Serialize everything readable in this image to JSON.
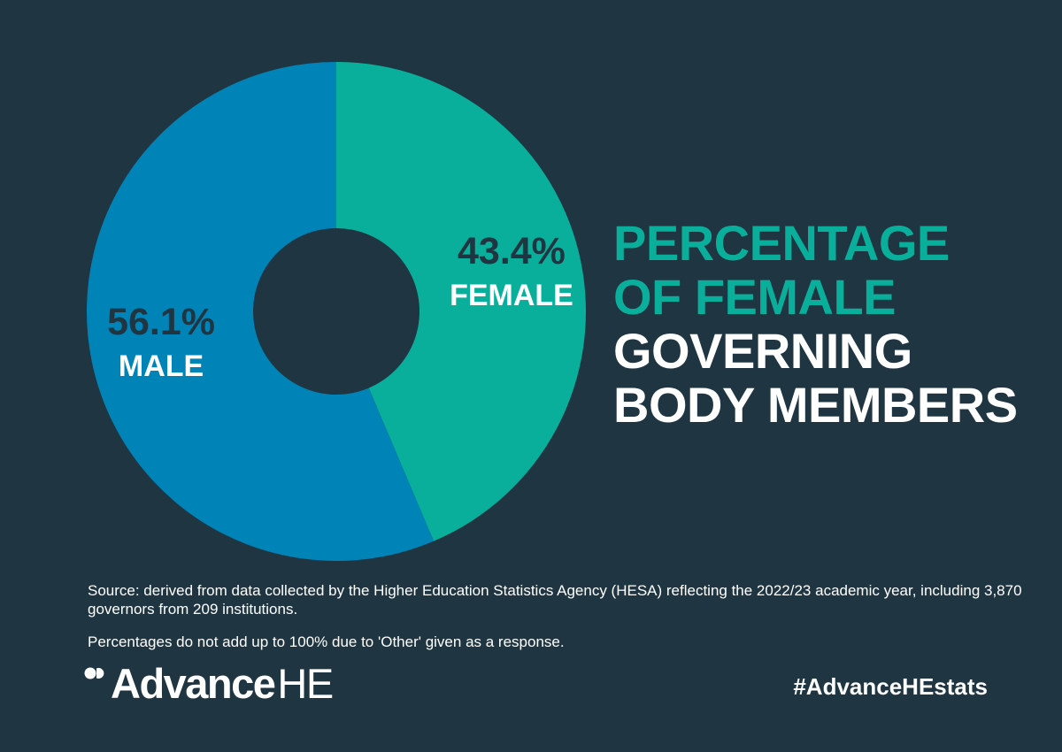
{
  "chart_data": {
    "type": "pie",
    "style": "donut",
    "title": "PERCENTAGE OF FEMALE GOVERNING BODY MEMBERS",
    "slices": [
      {
        "label": "FEMALE",
        "value": 43.4,
        "value_label": "43.4%",
        "color": "#0aaf9c"
      },
      {
        "label": "MALE",
        "value": 56.1,
        "value_label": "56.1%",
        "color": "#0084b8"
      }
    ]
  },
  "headline": {
    "lines": [
      "PERCENTAGE",
      "OF FEMALE",
      "GOVERNING",
      "BODY MEMBERS"
    ],
    "line_colors": [
      "#0aaf9c",
      "#0aaf9c",
      "#ffffff",
      "#ffffff"
    ]
  },
  "footer": {
    "source": "Source: derived from data collected by the Higher Education Statistics Agency (HESA) reflecting the 2022/23 academic year, including 3,870 governors from 209 institutions.",
    "note": "Percentages do not add up to 100% due to 'Other' given as a response.",
    "logo_bold": "Advance",
    "logo_light": "HE",
    "hashtag": "#AdvanceHEstats"
  },
  "colors": {
    "background": "#1f3541",
    "female": "#0aaf9c",
    "male": "#0084b8",
    "text": "#ffffff"
  }
}
